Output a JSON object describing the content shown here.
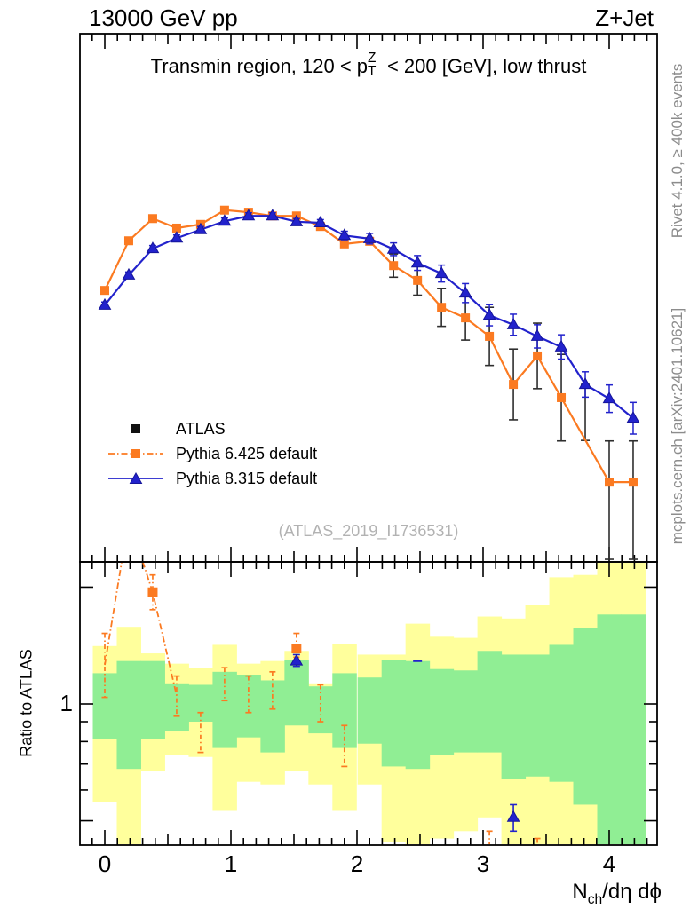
{
  "header": {
    "left": "13000 GeV pp",
    "right": "Z+Jet"
  },
  "title": {
    "pre": "Transmin region, 120 < p",
    "sup": "Z",
    "sub": "T",
    "post": " < 200 [GeV], low thrust"
  },
  "watermark": "(ATLAS_2019_I1736531)",
  "side_text_top": "Rivet 4.1.0, ≥ 400k events",
  "side_text_bottom": "mcplots.cern.ch [arXiv:2401.10621]",
  "xlabel": {
    "base": "N",
    "sub": "ch",
    "post": "/dη dϕ"
  },
  "colors": {
    "pythia6": "#fb7a21",
    "pythia8": "#2222cc",
    "band_outer": "#ffff9c",
    "band_inner": "#90ee94",
    "data_error": "#2e2e2e",
    "frame": "#000000"
  },
  "legend": {
    "items": [
      {
        "label": "ATLAS",
        "marker": "square",
        "color": "#111111",
        "line": "none"
      },
      {
        "label": "Pythia 6.425 default",
        "marker": "square",
        "color": "#fb7a21",
        "line": "dashdot"
      },
      {
        "label": "Pythia 8.315 default",
        "marker": "triangle",
        "color": "#2222cc",
        "line": "solid"
      }
    ]
  },
  "chart_data": {
    "type": "line",
    "title": "Transmin region, 120 < pT^Z < 200 [GeV], low thrust",
    "xlabel": "Nch/dη dϕ",
    "x_range": [
      -0.2,
      4.38
    ],
    "x_ticks": [
      0,
      1,
      2,
      3,
      4
    ],
    "x_minor_step": 0.1,
    "y_axis_note": "main panel has no tick labels; y values are fraction of panel height above bottom axis",
    "series": [
      {
        "name": "Pythia 6.425 default",
        "marker": "square",
        "x": [
          0.0,
          0.19,
          0.38,
          0.57,
          0.76,
          0.95,
          1.14,
          1.33,
          1.52,
          1.71,
          1.9,
          2.1,
          2.29,
          2.48,
          2.67,
          2.86,
          3.05,
          3.24,
          3.43,
          3.62,
          4.0,
          4.19
        ],
        "y": [
          0.514,
          0.608,
          0.65,
          0.632,
          0.639,
          0.666,
          0.662,
          0.655,
          0.655,
          0.635,
          0.602,
          0.607,
          0.561,
          0.533,
          0.482,
          0.462,
          0.427,
          0.336,
          0.39,
          0.311,
          0.151,
          0.151
        ]
      },
      {
        "name": "Pythia 8.315 default",
        "marker": "triangle",
        "x": [
          0.0,
          0.19,
          0.38,
          0.57,
          0.76,
          0.95,
          1.14,
          1.33,
          1.52,
          1.71,
          1.9,
          2.1,
          2.29,
          2.48,
          2.67,
          2.86,
          3.05,
          3.24,
          3.43,
          3.62,
          3.81,
          4.0,
          4.19
        ],
        "y": [
          0.486,
          0.543,
          0.593,
          0.613,
          0.629,
          0.645,
          0.655,
          0.655,
          0.644,
          0.642,
          0.618,
          0.612,
          0.592,
          0.566,
          0.546,
          0.509,
          0.467,
          0.449,
          0.427,
          0.407,
          0.336,
          0.309,
          0.272
        ],
        "err_half": [
          0.006,
          0.006,
          0.006,
          0.006,
          0.006,
          0.006,
          0.006,
          0.006,
          0.006,
          0.006,
          0.008,
          0.01,
          0.012,
          0.014,
          0.016,
          0.018,
          0.02,
          0.02,
          0.022,
          0.023,
          0.024,
          0.026,
          0.03
        ]
      }
    ],
    "data_error_bars": [
      {
        "x": 2.29,
        "lo": 0.539,
        "hi": 0.583
      },
      {
        "x": 2.48,
        "lo": 0.505,
        "hi": 0.561
      },
      {
        "x": 2.67,
        "lo": 0.446,
        "hi": 0.518
      },
      {
        "x": 2.86,
        "lo": 0.42,
        "hi": 0.504
      },
      {
        "x": 3.05,
        "lo": 0.372,
        "hi": 0.482
      },
      {
        "x": 3.24,
        "lo": 0.269,
        "hi": 0.403
      },
      {
        "x": 3.43,
        "lo": 0.328,
        "hi": 0.452
      },
      {
        "x": 3.62,
        "lo": 0.229,
        "hi": 0.393
      },
      {
        "x": 3.81,
        "lo": 0.23,
        "hi": 0.336
      },
      {
        "x": 4.0,
        "lo": 0.005,
        "hi": 0.229
      },
      {
        "x": 4.19,
        "lo": 0.005,
        "hi": 0.229
      }
    ],
    "ratio": {
      "ylabel": "Ratio to ATLAS",
      "y_scale": "log",
      "y_range": [
        0.43,
        2.32
      ],
      "y_ticks": [
        0.5,
        0.6,
        0.7,
        0.8,
        0.9,
        1,
        2
      ],
      "y_tick_labels": [
        {
          "value": 1,
          "label": "1"
        }
      ],
      "bin_half_width": 0.095,
      "bands": [
        {
          "x": 0.0,
          "outer": [
            0.56,
            1.41
          ],
          "inner": [
            0.81,
            1.2
          ]
        },
        {
          "x": 0.19,
          "outer": [
            0.42,
            1.58
          ],
          "inner": [
            0.68,
            1.29
          ]
        },
        {
          "x": 0.38,
          "outer": [
            0.67,
            1.35
          ],
          "inner": [
            0.81,
            1.29
          ]
        },
        {
          "x": 0.57,
          "outer": [
            0.74,
            1.27
          ],
          "inner": [
            0.85,
            1.13
          ]
        },
        {
          "x": 0.76,
          "outer": [
            0.73,
            1.24
          ],
          "inner": [
            0.9,
            1.12
          ]
        },
        {
          "x": 0.95,
          "outer": [
            0.53,
            1.42
          ],
          "inner": [
            0.77,
            1.21
          ]
        },
        {
          "x": 1.14,
          "outer": [
            0.63,
            1.27
          ],
          "inner": [
            0.82,
            1.19
          ]
        },
        {
          "x": 1.33,
          "outer": [
            0.62,
            1.29
          ],
          "inner": [
            0.75,
            1.15
          ]
        },
        {
          "x": 1.52,
          "outer": [
            0.67,
            1.37
          ],
          "inner": [
            0.88,
            1.3
          ]
        },
        {
          "x": 1.71,
          "outer": [
            0.62,
            1.13
          ],
          "inner": [
            0.84,
            1.11
          ]
        },
        {
          "x": 1.9,
          "outer": [
            0.53,
            1.43
          ],
          "inner": [
            0.77,
            1.2
          ]
        },
        {
          "x": 2.1,
          "outer": [
            0.62,
            1.34
          ],
          "inner": [
            0.79,
            1.17
          ]
        },
        {
          "x": 2.29,
          "outer": [
            0.44,
            1.34
          ],
          "inner": [
            0.69,
            1.3
          ]
        },
        {
          "x": 2.48,
          "outer": [
            0.42,
            1.61
          ],
          "inner": [
            0.68,
            1.29
          ]
        },
        {
          "x": 2.67,
          "outer": [
            0.45,
            1.49
          ],
          "inner": [
            0.74,
            1.23
          ]
        },
        {
          "x": 2.86,
          "outer": [
            0.47,
            1.48
          ],
          "inner": [
            0.75,
            1.22
          ]
        },
        {
          "x": 3.05,
          "outer": [
            0.51,
            1.68
          ],
          "inner": [
            0.75,
            1.37
          ]
        },
        {
          "x": 3.24,
          "outer": [
            0.42,
            1.66
          ],
          "inner": [
            0.64,
            1.34
          ]
        },
        {
          "x": 3.43,
          "outer": [
            0.42,
            1.8
          ],
          "inner": [
            0.65,
            1.34
          ]
        },
        {
          "x": 3.62,
          "outer": [
            0.42,
            2.12
          ],
          "inner": [
            0.63,
            1.42
          ]
        },
        {
          "x": 3.81,
          "outer": [
            0.42,
            2.15
          ],
          "inner": [
            0.55,
            1.57
          ]
        },
        {
          "x": 4.0,
          "outer": [
            0.42,
            2.35
          ],
          "inner": [
            0.42,
            1.7
          ]
        },
        {
          "x": 4.19,
          "outer": [
            0.42,
            2.35
          ],
          "inner": [
            0.42,
            1.7
          ]
        }
      ],
      "pythia6_line": [
        [
          0.0,
          1.26
        ],
        [
          0.19,
          3.0
        ],
        [
          0.38,
          1.94
        ],
        [
          0.57,
          1.05
        ]
      ],
      "pythia6_points": [
        {
          "x": 0.0,
          "y": 1.26,
          "lo": 1.04,
          "hi": 1.52,
          "m": 0
        },
        {
          "x": 0.38,
          "y": 1.94,
          "lo": 1.75,
          "hi": 2.15,
          "m": 1
        },
        {
          "x": 0.57,
          "y": 1.05,
          "lo": 0.93,
          "hi": 1.18,
          "m": 0
        },
        {
          "x": 0.76,
          "y": 0.85,
          "lo": 0.75,
          "hi": 0.95,
          "m": 0
        },
        {
          "x": 0.95,
          "y": 1.12,
          "lo": 1.02,
          "hi": 1.24,
          "m": 0
        },
        {
          "x": 1.14,
          "y": 1.06,
          "lo": 0.95,
          "hi": 1.18,
          "m": 0
        },
        {
          "x": 1.33,
          "y": 1.09,
          "lo": 0.97,
          "hi": 1.21,
          "m": 0
        },
        {
          "x": 1.52,
          "y": 1.39,
          "lo": 1.32,
          "hi": 1.52,
          "m": 1
        },
        {
          "x": 1.71,
          "y": 1.01,
          "lo": 0.9,
          "hi": 1.12,
          "m": 0
        },
        {
          "x": 1.9,
          "y": 0.78,
          "lo": 0.69,
          "hi": 0.88,
          "m": 0
        },
        {
          "x": 3.05,
          "y": 0.45,
          "lo": 0.4,
          "hi": 0.47,
          "m": 0
        },
        {
          "x": 3.43,
          "y": 0.43,
          "lo": 0.4,
          "hi": 0.45,
          "m": 0
        }
      ],
      "pythia8_points": [
        {
          "x": 1.52,
          "y": 1.29,
          "lo": 1.25,
          "hi": 1.34,
          "m": "triangle"
        },
        {
          "x": 2.48,
          "y": 1.29,
          "m": "dash"
        },
        {
          "x": 3.24,
          "y": 0.51,
          "lo": 0.47,
          "hi": 0.55,
          "m": "triangle"
        }
      ]
    }
  }
}
